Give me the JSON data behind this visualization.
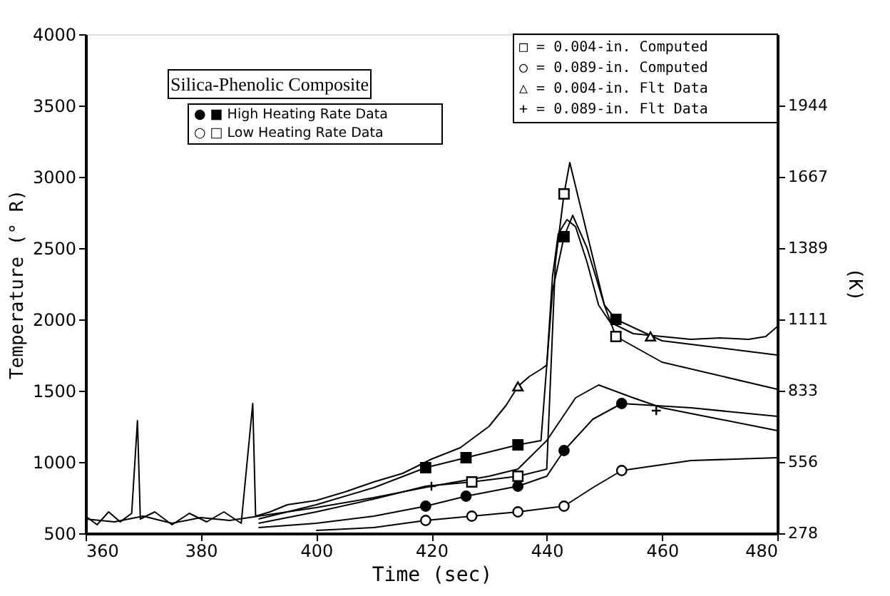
{
  "chart_data": {
    "type": "line",
    "xlabel": "Time (sec)",
    "ylabel": "Temperature (° R)",
    "y2label": "(K)",
    "xlim": [
      360,
      480
    ],
    "xticks": [
      360,
      380,
      400,
      420,
      440,
      460,
      480
    ],
    "ylim": [
      500,
      4000
    ],
    "yticks": [
      500,
      1000,
      1500,
      2000,
      2500,
      3000,
      3500,
      4000
    ],
    "y2lim": [
      277.8,
      2222.2
    ],
    "y2ticks": [
      {
        "value": 277.8,
        "label": "278"
      },
      {
        "value": 555.6,
        "label": "556"
      },
      {
        "value": 833.3,
        "label": "833"
      },
      {
        "value": 1111.1,
        "label": "1111"
      },
      {
        "value": 1388.9,
        "label": "1389"
      },
      {
        "value": 1666.7,
        "label": "1667"
      },
      {
        "value": 1944.4,
        "label": "1944"
      }
    ],
    "grid": false,
    "marker": "none",
    "line_style": "solid",
    "annotations": [
      "Silica-Phenolic Composite",
      "● ■ High Heating Rate Data",
      "○ □ Low Heating Rate Data",
      "□ = 0.004-in. Computed",
      "○ = 0.089-in. Computed",
      "△ = 0.004-in. Flt Data",
      "+ = 0.089-in. Flt Data"
    ],
    "series": [
      {
        "color": "#000000",
        "x": [
          360,
          362,
          364,
          366,
          368,
          369,
          369.5,
          372,
          375,
          378,
          381,
          384,
          387,
          389,
          389.5,
          392,
          395,
          400,
          405,
          410,
          415,
          420,
          425,
          430,
          433,
          435,
          437,
          439,
          440,
          441,
          442,
          443.5,
          445,
          447,
          449,
          451,
          455,
          460,
          465,
          470,
          475,
          478,
          480
        ],
        "values": [
          620,
          560,
          650,
          580,
          640,
          1290,
          600,
          650,
          560,
          640,
          580,
          650,
          570,
          1410,
          620,
          650,
          700,
          730,
          790,
          860,
          920,
          1020,
          1100,
          1250,
          1400,
          1530,
          1600,
          1650,
          1680,
          2300,
          2600,
          2700,
          2650,
          2400,
          2100,
          1980,
          1900,
          1880,
          1860,
          1870,
          1860,
          1880,
          1950
        ]
      },
      {
        "color": "#000000",
        "x": [
          360,
          365,
          370,
          375,
          380,
          385,
          390,
          400,
          410,
          420,
          430,
          435,
          440,
          445,
          449,
          455,
          460,
          470,
          480
        ],
        "values": [
          600,
          580,
          620,
          570,
          610,
          590,
          620,
          680,
          750,
          830,
          900,
          950,
          1150,
          1450,
          1540,
          1450,
          1380,
          1300,
          1220
        ]
      },
      {
        "color": "#000000",
        "x": [
          390,
          400,
          410,
          419,
          426,
          435,
          439,
          441,
          443,
          444.5,
          447,
          450,
          452,
          460,
          480
        ],
        "values": [
          600,
          700,
          820,
          960,
          1030,
          1120,
          1150,
          2200,
          2580,
          2730,
          2500,
          2100,
          2000,
          1850,
          1750
        ]
      },
      {
        "color": "#000000",
        "x": [
          390,
          400,
          410,
          419,
          427,
          435,
          440,
          441.5,
          443,
          444,
          447,
          450,
          452,
          460,
          480
        ],
        "values": [
          570,
          650,
          740,
          830,
          860,
          900,
          950,
          2400,
          2880,
          3100,
          2600,
          2100,
          1880,
          1700,
          1510
        ]
      },
      {
        "color": "#000000",
        "x": [
          390,
          400,
          410,
          419,
          426,
          435,
          440,
          443,
          448,
          453,
          465,
          480
        ],
        "values": [
          540,
          570,
          620,
          690,
          760,
          830,
          900,
          1080,
          1300,
          1410,
          1380,
          1320
        ]
      },
      {
        "color": "#000000",
        "x": [
          400,
          410,
          419,
          427,
          435,
          443,
          448,
          453,
          465,
          480
        ],
        "values": [
          520,
          540,
          590,
          620,
          650,
          690,
          820,
          940,
          1010,
          1030
        ]
      },
      {
        "type": "scatter",
        "marker": "triangle",
        "color": "#ffffff",
        "x": [
          435,
          458
        ],
        "values": [
          1530,
          1880
        ]
      },
      {
        "type": "scatter",
        "marker": "cross",
        "color": "#000000",
        "x": [
          420,
          459
        ],
        "values": [
          830,
          1360
        ]
      },
      {
        "type": "scatter",
        "marker": "square",
        "color": "#000000",
        "x": [
          419,
          426,
          435,
          443,
          452
        ],
        "values": [
          960,
          1030,
          1120,
          2580,
          2000
        ]
      },
      {
        "type": "scatter",
        "marker": "square",
        "color": "#ffffff",
        "x": [
          427,
          435,
          443,
          452
        ],
        "values": [
          860,
          900,
          2880,
          1880
        ]
      },
      {
        "type": "scatter",
        "marker": "circle",
        "color": "#000000",
        "x": [
          419,
          426,
          435,
          443,
          453
        ],
        "values": [
          690,
          760,
          830,
          1080,
          1410
        ]
      },
      {
        "type": "scatter",
        "marker": "circle",
        "color": "#ffffff",
        "x": [
          419,
          427,
          435,
          443,
          453
        ],
        "values": [
          590,
          620,
          650,
          690,
          940
        ]
      }
    ]
  }
}
